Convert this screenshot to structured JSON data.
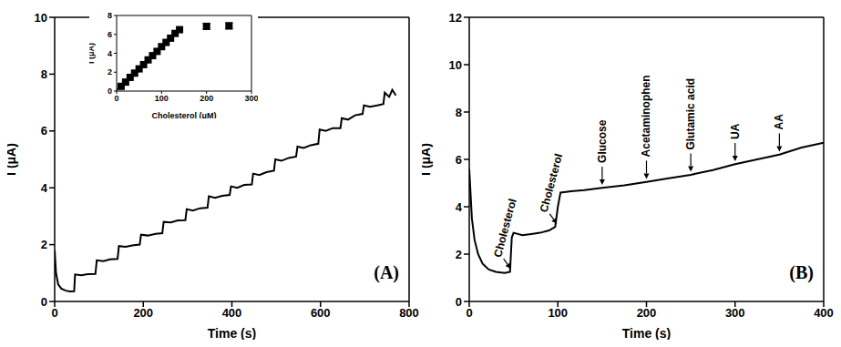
{
  "chart_data": [
    {
      "type": "line",
      "panel_label": "(A)",
      "x_label": "Time (s)",
      "y_label": "I (μA)",
      "color": "#000000",
      "xlim": [
        0,
        800
      ],
      "xticks": [
        0,
        200,
        400,
        600,
        800
      ],
      "ylim": [
        0,
        10
      ],
      "yticks": [
        0,
        2,
        4,
        6,
        8,
        10
      ],
      "x": [
        0,
        3,
        8,
        15,
        25,
        35,
        44,
        46,
        60,
        75,
        92,
        95,
        110,
        125,
        142,
        145,
        160,
        178,
        192,
        195,
        210,
        228,
        243,
        246,
        262,
        278,
        295,
        298,
        312,
        328,
        345,
        348,
        362,
        378,
        395,
        398,
        412,
        428,
        445,
        448,
        462,
        478,
        495,
        498,
        512,
        528,
        545,
        548,
        562,
        578,
        595,
        598,
        612,
        628,
        645,
        648,
        662,
        678,
        695,
        698,
        712,
        728,
        742,
        745,
        755,
        762,
        770
      ],
      "values": [
        1.8,
        1.0,
        0.6,
        0.45,
        0.38,
        0.35,
        0.36,
        0.95,
        0.92,
        0.96,
        0.97,
        1.45,
        1.42,
        1.48,
        1.5,
        1.95,
        1.92,
        1.98,
        2.0,
        2.35,
        2.32,
        2.38,
        2.4,
        2.8,
        2.78,
        2.85,
        2.86,
        3.25,
        3.2,
        3.28,
        3.3,
        3.7,
        3.65,
        3.72,
        3.75,
        4.05,
        4.0,
        4.1,
        4.12,
        4.5,
        4.45,
        4.55,
        4.6,
        5.0,
        4.95,
        5.05,
        5.1,
        5.45,
        5.4,
        5.5,
        5.55,
        6.05,
        6.0,
        6.1,
        6.1,
        6.45,
        6.4,
        6.55,
        6.6,
        6.9,
        6.85,
        6.9,
        6.95,
        7.35,
        7.2,
        7.45,
        7.25
      ]
    },
    {
      "type": "scatter",
      "x_label": "Cholesterol (μM)",
      "y_label": "I (μA)",
      "color": "#000000",
      "marker": "square",
      "xlim": [
        0,
        300
      ],
      "xticks": [
        0,
        100,
        200,
        300
      ],
      "ylim": [
        0,
        8
      ],
      "yticks": [
        0,
        2,
        4,
        6,
        8
      ],
      "series": [
        {
          "type": "scatter",
          "x": [
            10,
            20,
            30,
            40,
            50,
            60,
            70,
            80,
            90,
            100,
            110,
            120,
            130,
            140,
            200,
            250
          ],
          "values": [
            0.5,
            0.95,
            1.45,
            1.9,
            2.35,
            2.8,
            3.3,
            3.75,
            4.2,
            4.7,
            5.15,
            5.6,
            6.1,
            6.5,
            6.85,
            6.9
          ],
          "error": [
            0,
            0,
            0,
            0,
            0,
            0,
            0,
            0,
            0,
            0,
            0,
            0,
            0,
            0,
            0.3,
            0.3
          ]
        },
        {
          "type": "line",
          "x": [
            0,
            140
          ],
          "values": [
            0.1,
            6.6
          ]
        }
      ]
    },
    {
      "type": "line",
      "panel_label": "(B)",
      "x_label": "Time (s)",
      "y_label": "I (μA)",
      "color": "#000000",
      "xlim": [
        0,
        400
      ],
      "xticks": [
        0,
        100,
        200,
        300,
        400
      ],
      "ylim": [
        0,
        12
      ],
      "yticks": [
        0,
        2,
        4,
        6,
        8,
        10,
        12
      ],
      "x": [
        0,
        3,
        6,
        10,
        15,
        22,
        30,
        40,
        46,
        48,
        50,
        60,
        70,
        80,
        90,
        97,
        100,
        103,
        115,
        130,
        150,
        175,
        200,
        225,
        250,
        275,
        300,
        325,
        350,
        375,
        400
      ],
      "values": [
        5.6,
        3.5,
        2.6,
        2.0,
        1.6,
        1.35,
        1.25,
        1.2,
        1.25,
        2.7,
        2.9,
        2.8,
        2.85,
        2.9,
        3.0,
        3.15,
        4.0,
        4.6,
        4.65,
        4.7,
        4.8,
        4.9,
        5.05,
        5.2,
        5.35,
        5.55,
        5.8,
        6.0,
        6.2,
        6.5,
        6.7
      ],
      "annotations": [
        {
          "text": "Cholesterol",
          "x": 48,
          "y": 1.3
        },
        {
          "text": "Cholesterol",
          "x": 100,
          "y": 3.2
        },
        {
          "text": "Glucose",
          "x": 150,
          "y": 4.85
        },
        {
          "text": "Acetaminophen",
          "x": 200,
          "y": 5.1
        },
        {
          "text": "Glutamic acid",
          "x": 250,
          "y": 5.4
        },
        {
          "text": "UA",
          "x": 300,
          "y": 5.85
        },
        {
          "text": "AA",
          "x": 350,
          "y": 6.25
        }
      ]
    }
  ]
}
